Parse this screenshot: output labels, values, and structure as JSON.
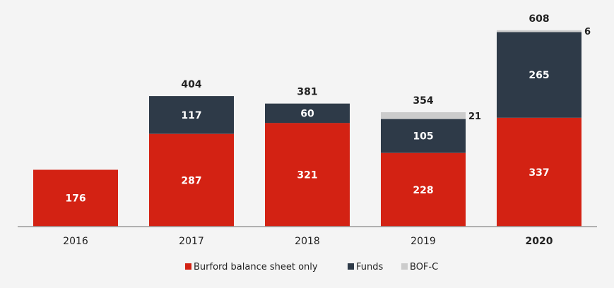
{
  "chart_data": {
    "type": "bar",
    "stacked": true,
    "title": "",
    "xlabel": "",
    "ylabel": "",
    "ylim": [
      0,
      620
    ],
    "grid": false,
    "legend_position": "bottom-center",
    "categories": [
      "2016",
      "2017",
      "2018",
      "2019",
      "2020"
    ],
    "bold_categories": [
      "2020"
    ],
    "series": [
      {
        "name": "Burford balance sheet only",
        "color": "#d32213",
        "values": [
          176,
          287,
          321,
          228,
          337
        ]
      },
      {
        "name": "Funds",
        "color": "#2e3a48",
        "values": [
          null,
          117,
          60,
          105,
          265
        ]
      },
      {
        "name": "BOF-C",
        "color": "#cccccc",
        "values": [
          null,
          null,
          null,
          21,
          6
        ]
      }
    ],
    "totals": [
      null,
      404,
      381,
      354,
      608
    ]
  }
}
